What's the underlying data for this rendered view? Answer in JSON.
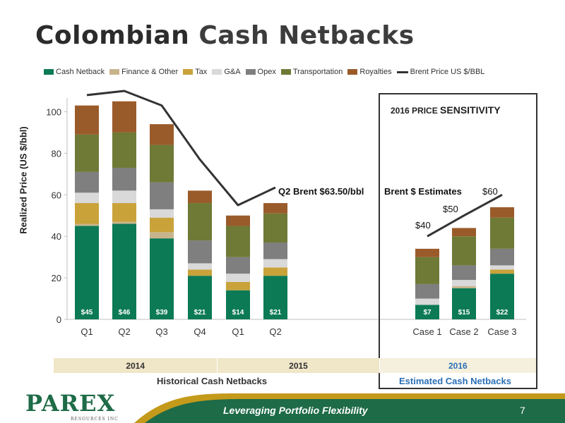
{
  "page": {
    "title_part1": "Colombian",
    "title_part2": "Cash Netbacks",
    "tagline": "Leveraging Portfolio Flexibility",
    "page_number": "7",
    "logo_text": "PAREX",
    "logo_subtext": "RESOURCES INC"
  },
  "sensitivity": {
    "title_small": "2016 PRICE",
    "title_big": "SENSITIVITY",
    "brent_estimates_label": "Brent  $ Estimates",
    "case_prices": [
      "$40",
      "$50",
      "$60"
    ]
  },
  "annotation_q2": "Q2 Brent $63.50/bbl",
  "years": [
    "2014",
    "2015",
    "2016"
  ],
  "groups": {
    "historical": "Historical Cash Netbacks",
    "estimated": "Estimated Cash Netbacks"
  },
  "chart_data": {
    "type": "bar",
    "stacked": true,
    "categories": [
      "Q1",
      "Q2",
      "Q3",
      "Q4",
      "Q1",
      "Q2",
      "Case 1",
      "Case 2",
      "Case 3"
    ],
    "ylabel": "Realized Price (US $/bbl)",
    "ylim": [
      0,
      110
    ],
    "yticks": [
      0,
      20,
      40,
      60,
      80,
      100
    ],
    "series": [
      {
        "name": "Cash Netback",
        "color": "#0c7a55",
        "values": [
          45,
          46,
          39,
          21,
          14,
          21,
          7,
          15,
          22
        ]
      },
      {
        "name": "Finance  & Other",
        "color": "#c8b48c",
        "values": [
          1,
          1,
          3,
          0,
          0,
          0,
          0,
          1,
          0
        ]
      },
      {
        "name": "Tax",
        "color": "#c9a23a",
        "values": [
          10,
          9,
          7,
          3,
          4,
          4,
          0,
          0,
          2
        ]
      },
      {
        "name": "G&A",
        "color": "#d9d9d9",
        "values": [
          5,
          6,
          4,
          3,
          4,
          4,
          3,
          3,
          2
        ]
      },
      {
        "name": "Opex",
        "color": "#7f7f7f",
        "values": [
          10,
          11,
          13,
          11,
          8,
          8,
          7,
          7,
          8
        ]
      },
      {
        "name": "Transportation",
        "color": "#6e7a36",
        "values": [
          18,
          17,
          18,
          18,
          15,
          14,
          13,
          14,
          15
        ]
      },
      {
        "name": "Royalties",
        "color": "#9a5b2a",
        "values": [
          14,
          15,
          10,
          6,
          5,
          5,
          4,
          4,
          5
        ]
      }
    ],
    "line_series": {
      "name": "Brent Price US $/BBL",
      "color": "#333333",
      "values": [
        108,
        110,
        103,
        77,
        55,
        63.5,
        40,
        50,
        60
      ]
    },
    "data_labels": [
      "$45",
      "$46",
      "$39",
      "$21",
      "$14",
      "$21",
      "$7",
      "$15",
      "$22"
    ]
  }
}
